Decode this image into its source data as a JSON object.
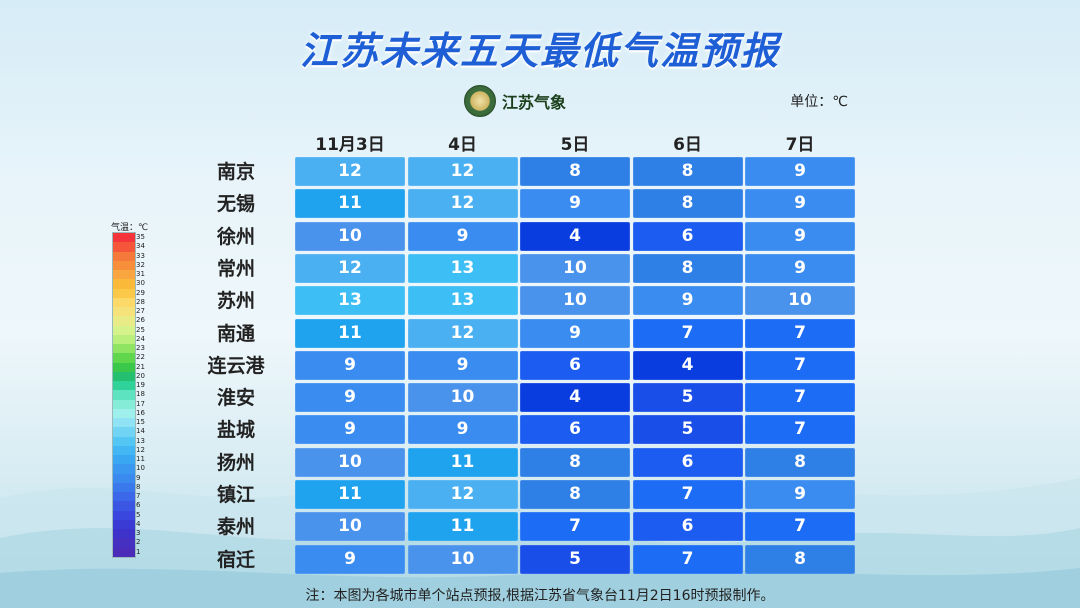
{
  "title": "江苏未来五天最低气温预报",
  "logo": {
    "text": "江苏气象",
    "icon": "jiangsu-meteorology-emblem"
  },
  "unit": "单位：℃",
  "footnote": "注：本图为各城市单个站点预报,根据江苏省气象台11月2日16时预报制作。",
  "chart_data": {
    "type": "table",
    "columns": [
      "11月3日",
      "4日",
      "5日",
      "6日",
      "7日"
    ],
    "rows": [
      {
        "city": "南京",
        "values": [
          12,
          12,
          8,
          8,
          9
        ]
      },
      {
        "city": "无锡",
        "values": [
          11,
          12,
          9,
          8,
          9
        ]
      },
      {
        "city": "徐州",
        "values": [
          10,
          9,
          4,
          6,
          9
        ]
      },
      {
        "city": "常州",
        "values": [
          12,
          13,
          10,
          8,
          9
        ]
      },
      {
        "city": "苏州",
        "values": [
          13,
          13,
          10,
          9,
          10
        ]
      },
      {
        "city": "南通",
        "values": [
          11,
          12,
          9,
          7,
          7
        ]
      },
      {
        "city": "连云港",
        "values": [
          9,
          9,
          6,
          4,
          7
        ]
      },
      {
        "city": "淮安",
        "values": [
          9,
          10,
          4,
          5,
          7
        ]
      },
      {
        "city": "盐城",
        "values": [
          9,
          9,
          6,
          5,
          7
        ]
      },
      {
        "city": "扬州",
        "values": [
          10,
          11,
          8,
          6,
          8
        ]
      },
      {
        "city": "镇江",
        "values": [
          11,
          12,
          8,
          7,
          9
        ]
      },
      {
        "city": "泰州",
        "values": [
          10,
          11,
          7,
          6,
          7
        ]
      },
      {
        "city": "宿迁",
        "values": [
          9,
          10,
          5,
          7,
          8
        ]
      }
    ],
    "legend": {
      "title": "气温：℃",
      "levels": [
        35,
        34,
        33,
        32,
        31,
        30,
        29,
        28,
        27,
        26,
        25,
        24,
        23,
        22,
        21,
        20,
        19,
        18,
        17,
        16,
        15,
        14,
        13,
        12,
        11,
        10,
        9,
        8,
        7,
        6,
        5,
        4,
        3,
        2,
        1
      ],
      "colors": [
        "#f5333a",
        "#f5563a",
        "#f5793a",
        "#f78f3a",
        "#f9a640",
        "#fbb93a",
        "#fcc84a",
        "#fcd968",
        "#f6e27a",
        "#e9ec86",
        "#d6f28a",
        "#b9ef7a",
        "#8fe462",
        "#5fd64c",
        "#3ac84a",
        "#24c070",
        "#2fd39a",
        "#5de3bf",
        "#85ecd8",
        "#9ff0ec",
        "#8fe3f5",
        "#72d4f4",
        "#54c6f4",
        "#43b6f4",
        "#3aa7f3",
        "#3a98f1",
        "#3a8aef",
        "#3a79ec",
        "#3a68e8",
        "#3a56e3",
        "#3a47de",
        "#3a3bd5",
        "#3d33cb",
        "#4530c2",
        "#4b2cb8"
      ]
    },
    "cell_colors": {
      "4": "#0a3de0",
      "5": "#1a4ee8",
      "6": "#1c5cf0",
      "7": "#1d6cf5",
      "8": "#2e7fe6",
      "9": "#3a8cf0",
      "10": "#4a93ec",
      "11": "#1fa3ef",
      "12": "#4bb0f1",
      "13": "#3dbff5"
    }
  }
}
